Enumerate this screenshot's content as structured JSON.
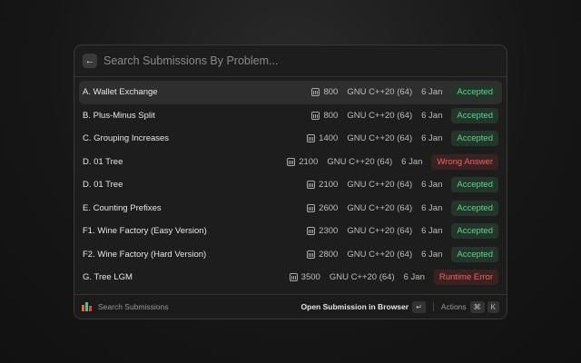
{
  "search": {
    "placeholder": "Search Submissions By Problem..."
  },
  "rows": [
    {
      "title": "A. Wallet Exchange",
      "rating": "800",
      "compiler": "GNU C++20 (64)",
      "date": "6 Jan",
      "verdict": "Accepted"
    },
    {
      "title": "B. Plus-Minus Split",
      "rating": "800",
      "compiler": "GNU C++20 (64)",
      "date": "6 Jan",
      "verdict": "Accepted"
    },
    {
      "title": "C. Grouping Increases",
      "rating": "1400",
      "compiler": "GNU C++20 (64)",
      "date": "6 Jan",
      "verdict": "Accepted"
    },
    {
      "title": "D. 01 Tree",
      "rating": "2100",
      "compiler": "GNU C++20 (64)",
      "date": "6 Jan",
      "verdict": "Wrong Answer"
    },
    {
      "title": "D. 01 Tree",
      "rating": "2100",
      "compiler": "GNU C++20 (64)",
      "date": "6 Jan",
      "verdict": "Accepted"
    },
    {
      "title": "E. Counting Prefixes",
      "rating": "2600",
      "compiler": "GNU C++20 (64)",
      "date": "6 Jan",
      "verdict": "Accepted"
    },
    {
      "title": "F1. Wine Factory (Easy Version)",
      "rating": "2300",
      "compiler": "GNU C++20 (64)",
      "date": "6 Jan",
      "verdict": "Accepted"
    },
    {
      "title": "F2. Wine Factory (Hard Version)",
      "rating": "2800",
      "compiler": "GNU C++20 (64)",
      "date": "6 Jan",
      "verdict": "Accepted"
    },
    {
      "title": "G. Tree LGM",
      "rating": "3500",
      "compiler": "GNU C++20 (64)",
      "date": "6 Jan",
      "verdict": "Runtime Error"
    }
  ],
  "footer": {
    "title": "Search Submissions",
    "primary_action": "Open Submission in Browser",
    "enter_key": "↵",
    "actions": "Actions",
    "cmd_key": "⌘",
    "k_key": "K"
  },
  "colors": {
    "accepted": "#5fd38d",
    "error": "#f06262",
    "logo": [
      "#e8643c",
      "#4cc38a",
      "#e8443c"
    ]
  }
}
